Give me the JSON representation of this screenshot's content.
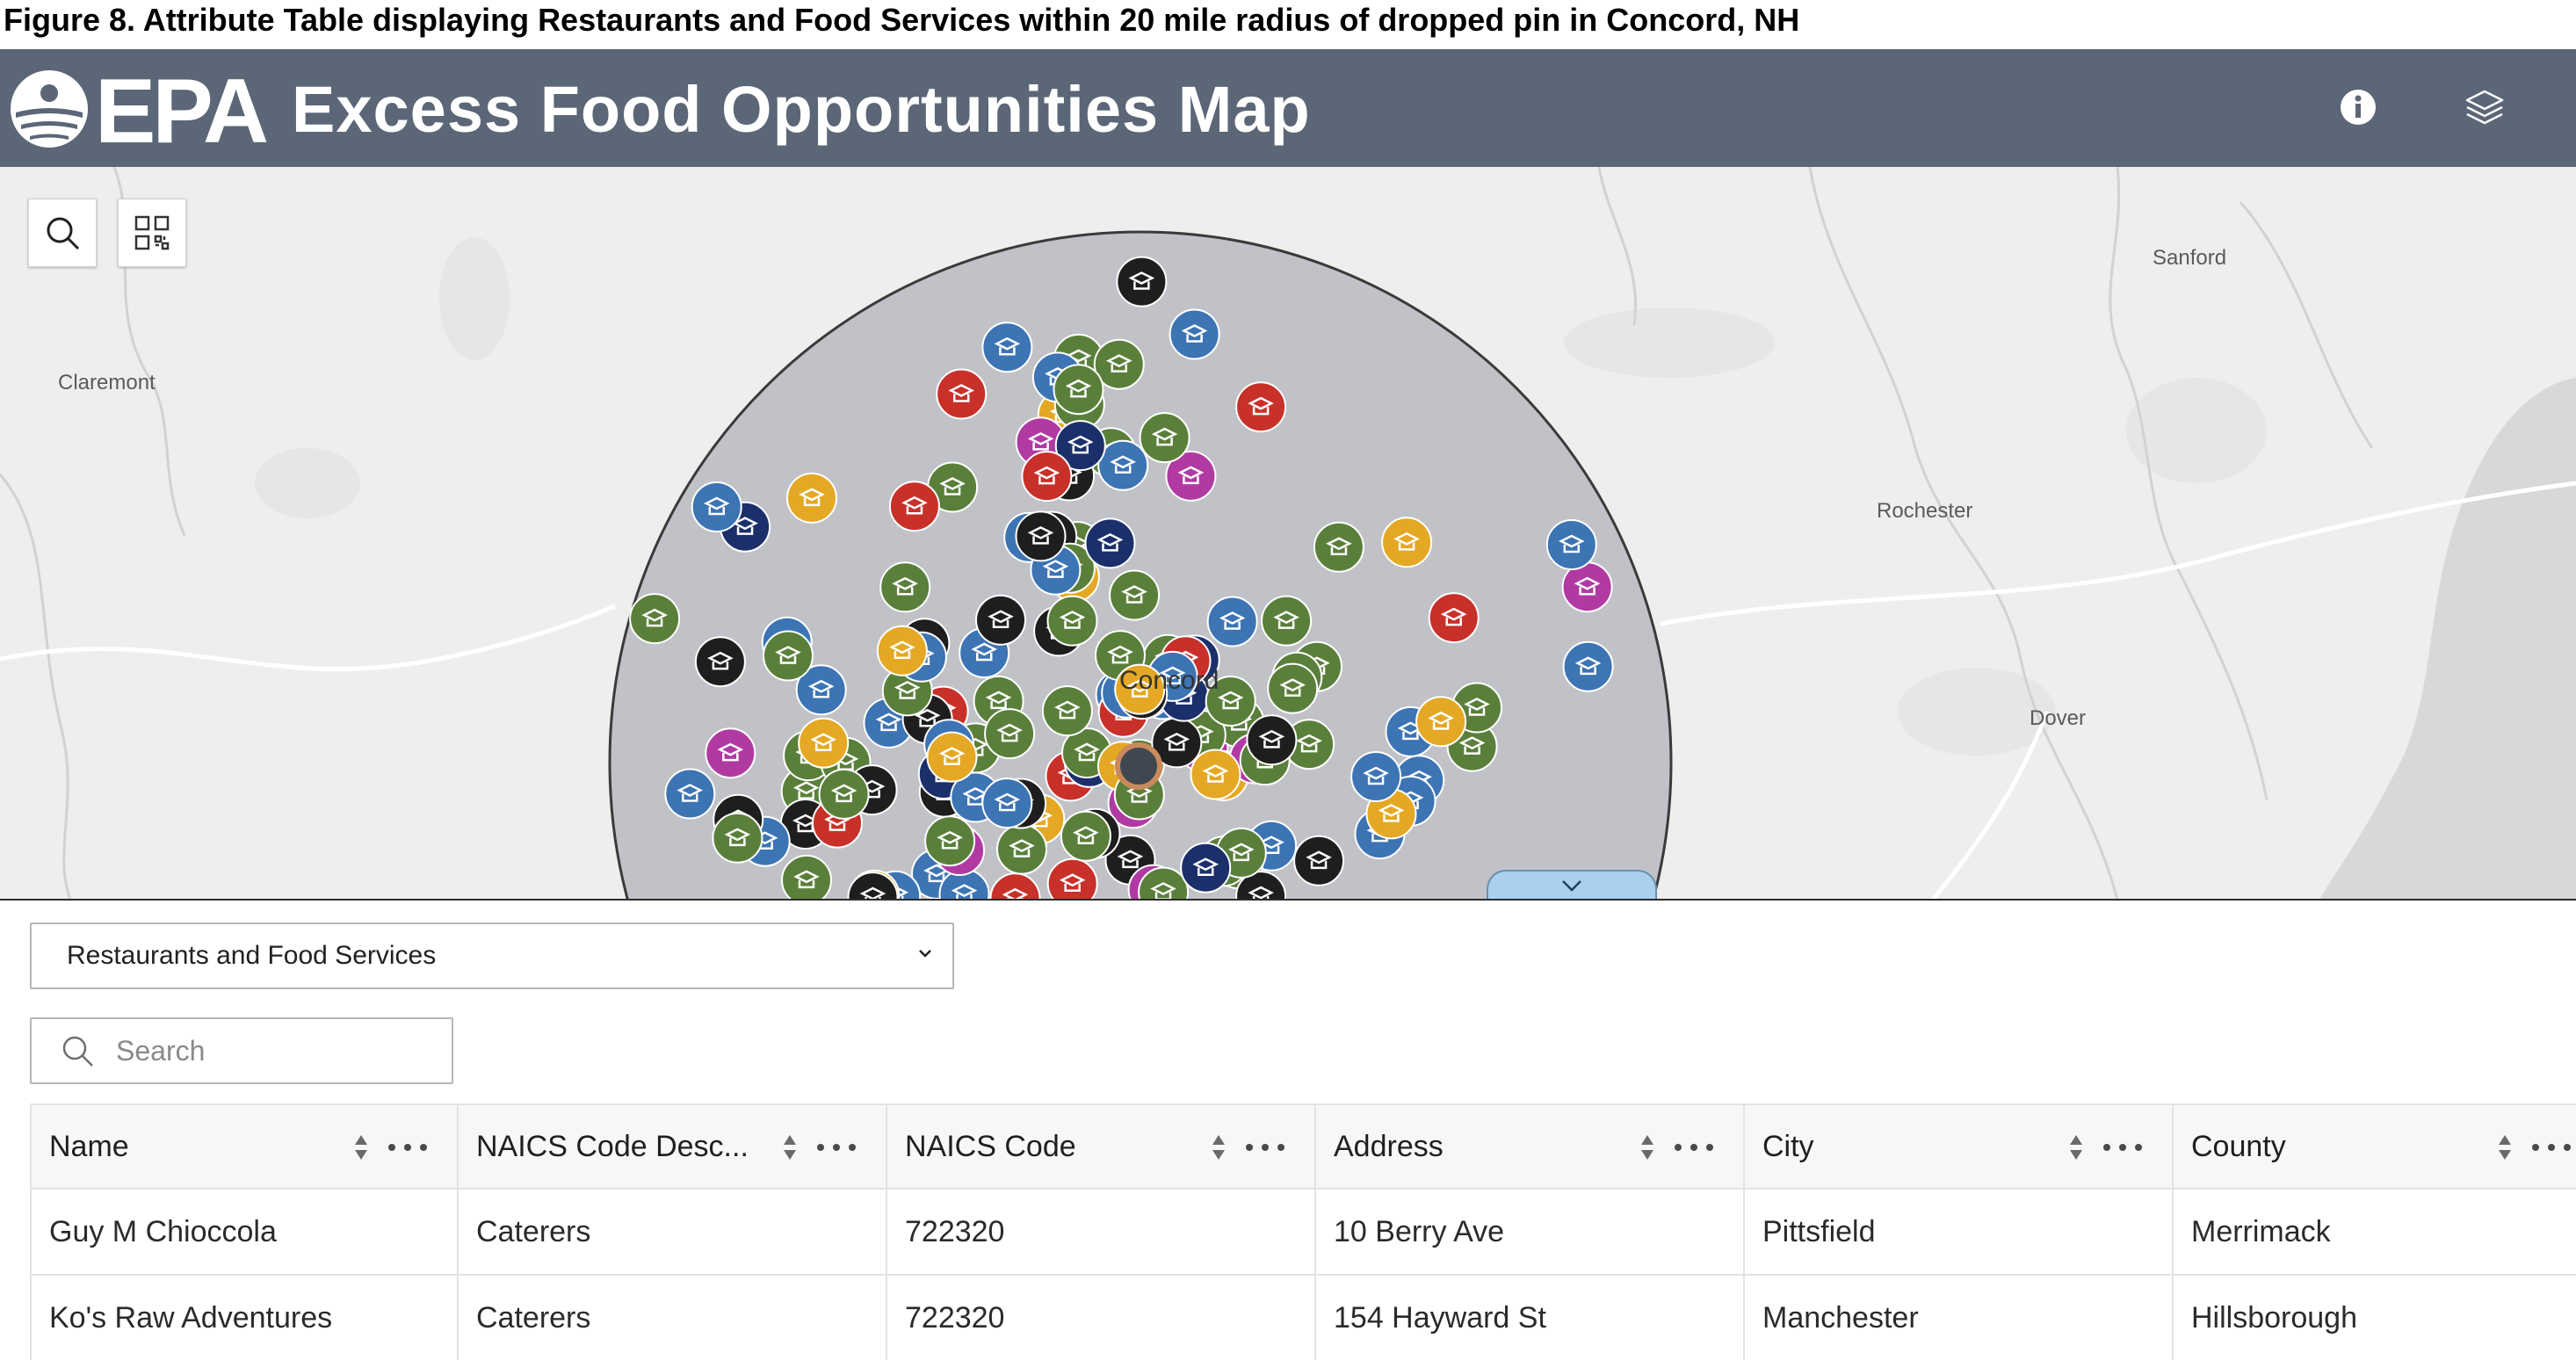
{
  "figure_caption": "Figure 8. Attribute Table displaying Restaurants and Food Services within 20 mile radius of dropped pin in Concord, NH",
  "header": {
    "logo_text": "EPA",
    "title": "Excess Food Opportunities Map",
    "info_icon": "info-icon",
    "layers_icon": "layers-icon",
    "background_color": "#5b6677"
  },
  "map": {
    "places": {
      "claremont": "Claremont",
      "sanford": "Sanford",
      "rochester": "Rochester",
      "dover": "Dover",
      "concord": "Concord"
    },
    "tools": [
      "search-icon",
      "qr-grid-icon"
    ],
    "collapse_icon": "chevron-down-icon",
    "radius_miles": 20,
    "marker_colors": {
      "caterer_green": "#5a7f3a",
      "grocery_blue": "#3c74b4",
      "restaurant_black": "#1e1e1e",
      "manufacturer_navy": "#1b2f6a",
      "retail_magenta": "#b03aa2",
      "institution_red": "#c8302a",
      "compost_yellow": "#e4a824"
    }
  },
  "layer_select": {
    "value": "Restaurants and Food Services"
  },
  "search": {
    "placeholder": "Search"
  },
  "table": {
    "columns": [
      "Name",
      "NAICS Code Desc...",
      "NAICS Code",
      "Address",
      "City",
      "County"
    ],
    "rows": [
      [
        "Guy M Chioccola",
        "Caterers",
        "722320",
        "10 Berry Ave",
        "Pittsfield",
        "Merrimack"
      ],
      [
        "Ko's Raw Adventures",
        "Caterers",
        "722320",
        "154 Hayward St",
        "Manchester",
        "Hillsborough"
      ]
    ]
  }
}
